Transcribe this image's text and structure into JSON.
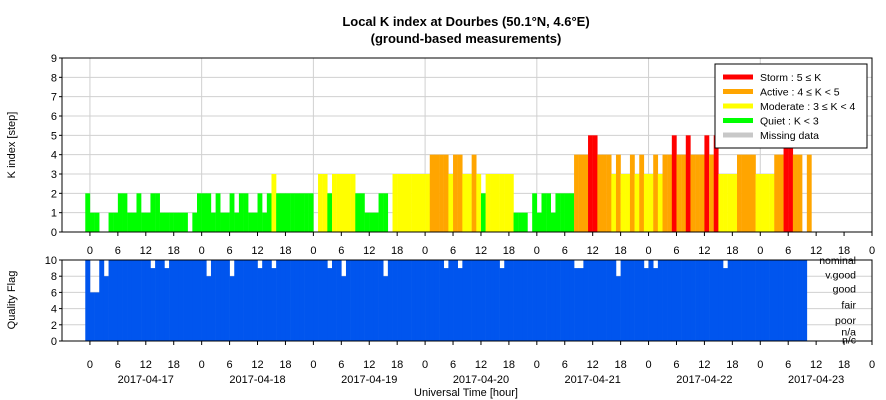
{
  "chart_data": [
    {
      "type": "bar",
      "title": "Local K index at Dourbes (50.1°N, 4.6°E)",
      "subtitle": "(ground-based measurements)",
      "ylabel": "K index [step]",
      "ylim": [
        0,
        9
      ],
      "yticks": [
        "0",
        "1",
        "2",
        "3",
        "4",
        "5",
        "6",
        "7",
        "8",
        "9"
      ],
      "grid": true,
      "legend_position": "top-right",
      "x_start": "2017-04-16T18:00",
      "x_end": "2017-04-24T00:00",
      "xtick_hours": [
        "0",
        "6",
        "12",
        "18",
        "0",
        "6",
        "12",
        "18",
        "0",
        "6",
        "12",
        "18",
        "0",
        "6",
        "12",
        "18",
        "0",
        "6",
        "12",
        "18",
        "0",
        "6",
        "12",
        "18",
        "0",
        "6",
        "12",
        "18",
        "0"
      ],
      "legend": [
        {
          "label": "Storm : 5 ≤ K",
          "color": "#ff0000"
        },
        {
          "label": "Active : 4 ≤ K < 5",
          "color": "#ffa500"
        },
        {
          "label": "Moderate : 3 ≤ K < 4",
          "color": "#ffff00"
        },
        {
          "label": "Quiet : K < 3",
          "color": "#00ff00"
        },
        {
          "label": "Missing data",
          "color": "#c8c8c8"
        }
      ],
      "colors": {
        "storm": "#ff0000",
        "active": "#ffa500",
        "moderate": "#ffff00",
        "quiet": "#00ff00"
      },
      "interval_hours": 1,
      "series_start": "2017-04-16T23:00",
      "values": [
        2,
        1,
        1,
        0,
        0,
        1,
        1,
        2,
        2,
        1,
        1,
        2,
        1,
        1,
        2,
        2,
        1,
        1,
        1,
        1,
        1,
        1,
        0,
        1,
        2,
        2,
        2,
        1,
        2,
        1,
        1,
        2,
        1,
        2,
        2,
        1,
        1,
        2,
        1,
        2,
        3,
        2,
        2,
        2,
        2,
        2,
        2,
        2,
        2,
        0,
        3,
        3,
        2,
        3,
        3,
        3,
        3,
        3,
        2,
        2,
        1,
        1,
        1,
        2,
        2,
        0,
        3,
        3,
        3,
        3,
        3,
        3,
        3,
        3,
        4,
        4,
        4,
        4,
        3,
        4,
        4,
        3,
        3,
        4,
        3,
        2,
        3,
        3,
        3,
        3,
        3,
        3,
        1,
        1,
        1,
        0,
        2,
        1,
        2,
        2,
        1,
        2,
        2,
        2,
        2,
        4,
        4,
        4,
        5,
        5,
        4,
        4,
        4,
        3,
        4,
        3,
        3,
        4,
        3,
        4,
        3,
        3,
        4,
        3,
        4,
        4,
        5,
        4,
        4,
        5,
        4,
        4,
        4,
        5,
        4,
        5,
        3,
        3,
        3,
        3,
        4,
        4,
        4,
        4,
        3,
        3,
        3,
        3,
        4,
        4,
        5,
        5,
        4,
        4,
        0,
        4
      ]
    },
    {
      "type": "bar",
      "ylabel": "Quality Flag",
      "xlabel": "Universal Time [hour]",
      "ylim": [
        0,
        10
      ],
      "yticks": [
        "0",
        "2",
        "4",
        "6",
        "8",
        "10"
      ],
      "grid": true,
      "date_labels": [
        "2017-04-17",
        "2017-04-18",
        "2017-04-19",
        "2017-04-20",
        "2017-04-21",
        "2017-04-22",
        "2017-04-23"
      ],
      "xtick_hours": [
        "0",
        "6",
        "12",
        "18",
        "0",
        "6",
        "12",
        "18",
        "0",
        "6",
        "12",
        "18",
        "0",
        "6",
        "12",
        "18",
        "0",
        "6",
        "12",
        "18",
        "0",
        "6",
        "12",
        "18",
        "0",
        "6",
        "12",
        "18",
        "0"
      ],
      "quality_levels": [
        "nominal",
        "v.good",
        "good",
        "fair",
        "poor",
        "n/a",
        "n/c"
      ],
      "color": "#0055ee",
      "missing_color": "#c8c8c8",
      "series_start": "2017-04-16T23:00",
      "interval_minutes": 60,
      "values": [
        10,
        6,
        6,
        10,
        8,
        10,
        10,
        10,
        10,
        10,
        10,
        10,
        10,
        10,
        9,
        10,
        10,
        9,
        10,
        10,
        10,
        10,
        10,
        10,
        10,
        10,
        8,
        10,
        10,
        10,
        10,
        8,
        10,
        10,
        10,
        10,
        10,
        9,
        10,
        10,
        9,
        10,
        10,
        10,
        10,
        10,
        10,
        10,
        10,
        10,
        10,
        10,
        9,
        10,
        10,
        8,
        10,
        10,
        10,
        10,
        10,
        10,
        10,
        10,
        8,
        10,
        10,
        10,
        10,
        10,
        10,
        10,
        10,
        10,
        10,
        10,
        10,
        9,
        10,
        10,
        9,
        10,
        10,
        10,
        10,
        10,
        10,
        10,
        10,
        9,
        10,
        10,
        10,
        10,
        10,
        10,
        10,
        10,
        10,
        10,
        10,
        10,
        10,
        10,
        10,
        9,
        9,
        10,
        10,
        10,
        10,
        10,
        10,
        10,
        8,
        10,
        10,
        10,
        10,
        10,
        9,
        10,
        9,
        10,
        10,
        10,
        10,
        10,
        10,
        10,
        10,
        10,
        10,
        10,
        10,
        10,
        10,
        9,
        10,
        10,
        10,
        10,
        10,
        10,
        10,
        10,
        10,
        10,
        10,
        10,
        10,
        10,
        10,
        10,
        10
      ]
    }
  ]
}
